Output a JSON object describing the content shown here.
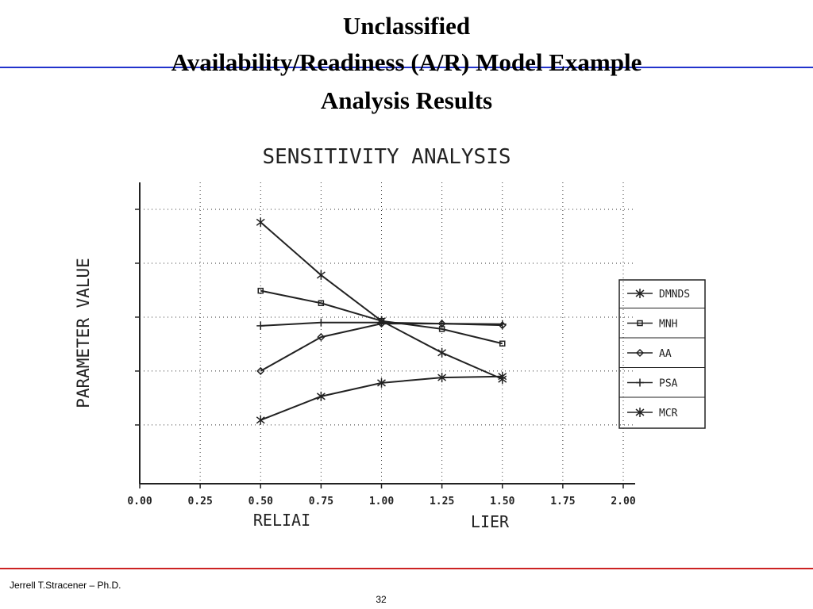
{
  "slide": {
    "title_lines": [
      "Unclassified",
      "Availability/Readiness (A/R) Model Example",
      "Analysis Results"
    ],
    "footer_author": "Jerrell T.Stracener – Ph.D.",
    "page_number": "32"
  },
  "chart_data": {
    "type": "line",
    "title": "SENSITIVITY ANALYSIS",
    "ylabel": "PARAMETER VALUE",
    "xlabel": [
      "RELIAI",
      "LIER"
    ],
    "xlim": [
      0,
      2
    ],
    "xticks": [
      {
        "value": 0,
        "label": "0.00"
      },
      {
        "value": 0.25,
        "label": "0.25"
      },
      {
        "value": 0.5,
        "label": "0.50"
      },
      {
        "value": 0.75,
        "label": "0.75"
      },
      {
        "value": 1,
        "label": "1.00"
      },
      {
        "value": 1.25,
        "label": "1.25"
      },
      {
        "value": 1.5,
        "label": "1.50"
      },
      {
        "value": 1.75,
        "label": "1.75"
      },
      {
        "value": 2,
        "label": "2.00"
      }
    ],
    "ylim": [
      -0.09,
      5.5
    ],
    "yticks": [
      1,
      2,
      3,
      4,
      5
    ],
    "grid": true,
    "x": [
      0.5,
      0.75,
      1,
      1.25,
      1.5
    ],
    "series": [
      {
        "name": "DMNDS",
        "color": "#222222",
        "values": [
          1.09,
          1.53,
          1.78,
          1.88,
          1.9
        ]
      },
      {
        "name": "MNH",
        "color": "#222222",
        "values": [
          3.49,
          3.26,
          2.93,
          2.78,
          2.51
        ]
      },
      {
        "name": "AA",
        "color": "#222222",
        "values": [
          2.0,
          2.63,
          2.88,
          2.88,
          2.85
        ]
      },
      {
        "name": "PSA",
        "color": "#222222",
        "values": [
          2.84,
          2.9,
          2.9,
          2.88,
          2.87
        ]
      },
      {
        "name": "MCR",
        "color": "#222222",
        "values": [
          4.76,
          3.78,
          2.93,
          2.34,
          1.85
        ]
      }
    ],
    "legend": "right"
  }
}
